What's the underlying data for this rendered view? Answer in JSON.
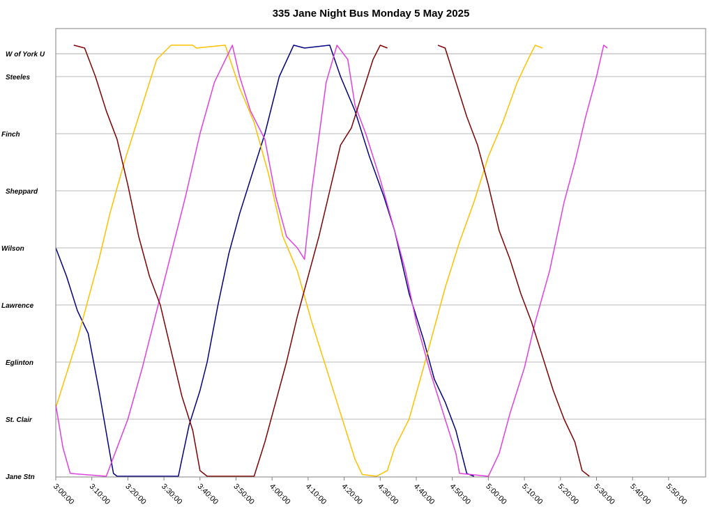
{
  "chart_data": {
    "type": "line",
    "title": "335 Jane Night Bus Monday 5 May 2025",
    "xlabel": "",
    "ylabel": "",
    "x_ticks": [
      "3:00:00",
      "3:10:00",
      "3:20:00",
      "3:30:00",
      "3:40:00",
      "3:50:00",
      "4:00:00",
      "4:10:00",
      "4:20:00",
      "4:30:00",
      "4:40:00",
      "4:50:00",
      "5:00:00",
      "5:10:00",
      "5:20:00",
      "5:30:00",
      "5:40:00",
      "5:50:00"
    ],
    "xlim_minutes_after_3am": [
      0,
      180
    ],
    "stops": [
      {
        "name": "Jane Stn",
        "pos": 0
      },
      {
        "name": "St. Clair",
        "pos": 1
      },
      {
        "name": "Eglinton",
        "pos": 2
      },
      {
        "name": "Lawrence",
        "pos": 3
      },
      {
        "name": "Wilson",
        "pos": 4
      },
      {
        "name": "Sheppard",
        "pos": 5
      },
      {
        "name": "Finch",
        "pos": 6
      },
      {
        "name": "Steeles",
        "pos": 7
      },
      {
        "name": "W of York U",
        "pos": 7.4
      }
    ],
    "ylim": [
      0,
      7.8
    ],
    "grid": true,
    "series": [
      {
        "color": "#000080",
        "points": [
          [
            0,
            4.0
          ],
          [
            3,
            3.5
          ],
          [
            6,
            2.9
          ],
          [
            9,
            2.5
          ],
          [
            12,
            1.5
          ],
          [
            15,
            0.4
          ],
          [
            16,
            0.05
          ],
          [
            17,
            0
          ],
          [
            34,
            0
          ],
          [
            35,
            0.3
          ],
          [
            37,
            0.9
          ],
          [
            40,
            1.5
          ],
          [
            42,
            2.0
          ],
          [
            45,
            3.0
          ],
          [
            48,
            3.9
          ],
          [
            51,
            4.6
          ],
          [
            54,
            5.2
          ],
          [
            58,
            6.0
          ],
          [
            62,
            7.0
          ],
          [
            66,
            7.55
          ],
          [
            69,
            7.5
          ],
          [
            76,
            7.55
          ],
          [
            79,
            7.0
          ],
          [
            83,
            6.4
          ],
          [
            87,
            5.6
          ],
          [
            91,
            4.9
          ],
          [
            94,
            4.3
          ],
          [
            98,
            3.2
          ],
          [
            102,
            2.4
          ],
          [
            105,
            1.7
          ],
          [
            108,
            1.3
          ],
          [
            111,
            0.8
          ],
          [
            113,
            0.3
          ],
          [
            114,
            0.05
          ],
          [
            116,
            0
          ]
        ]
      },
      {
        "color": "#FFC000",
        "points": [
          [
            0,
            1.2
          ],
          [
            3,
            1.8
          ],
          [
            6,
            2.4
          ],
          [
            9,
            3.1
          ],
          [
            12,
            3.8
          ],
          [
            15,
            4.6
          ],
          [
            19,
            5.5
          ],
          [
            24,
            6.5
          ],
          [
            28,
            7.3
          ],
          [
            32,
            7.55
          ],
          [
            38,
            7.55
          ],
          [
            39,
            7.5
          ],
          [
            47,
            7.55
          ],
          [
            51,
            6.8
          ],
          [
            55,
            6.2
          ],
          [
            59,
            5.3
          ],
          [
            63,
            4.2
          ],
          [
            67,
            3.6
          ],
          [
            71,
            2.7
          ],
          [
            75,
            1.9
          ],
          [
            79,
            1.1
          ],
          [
            83,
            0.3
          ],
          [
            85,
            0.03
          ],
          [
            89,
            0
          ],
          [
            92,
            0.1
          ],
          [
            94,
            0.5
          ],
          [
            98,
            1.0
          ],
          [
            102,
            1.9
          ],
          [
            105,
            2.6
          ],
          [
            108,
            3.3
          ],
          [
            112,
            4.1
          ],
          [
            116,
            4.8
          ],
          [
            120,
            5.6
          ],
          [
            124,
            6.2
          ],
          [
            128,
            6.9
          ],
          [
            131,
            7.3
          ],
          [
            133,
            7.55
          ],
          [
            135,
            7.5
          ]
        ]
      },
      {
        "color": "#E040E0",
        "points": [
          [
            0,
            1.25
          ],
          [
            2,
            0.5
          ],
          [
            4,
            0.05
          ],
          [
            14,
            0
          ],
          [
            17,
            0.5
          ],
          [
            20,
            1.0
          ],
          [
            24,
            1.9
          ],
          [
            28,
            2.9
          ],
          [
            32,
            3.9
          ],
          [
            36,
            4.9
          ],
          [
            40,
            6.0
          ],
          [
            44,
            6.9
          ],
          [
            49,
            7.55
          ],
          [
            51,
            7.0
          ],
          [
            54,
            6.4
          ],
          [
            58,
            5.9
          ],
          [
            61,
            4.9
          ],
          [
            64,
            4.2
          ],
          [
            67,
            4.0
          ],
          [
            69,
            3.8
          ],
          [
            71,
            5.0
          ],
          [
            75,
            6.9
          ],
          [
            78,
            7.55
          ],
          [
            81,
            7.3
          ],
          [
            83,
            6.5
          ],
          [
            86,
            6.0
          ],
          [
            90,
            5.2
          ],
          [
            94,
            4.3
          ],
          [
            97,
            3.6
          ],
          [
            100,
            2.7
          ],
          [
            104,
            1.8
          ],
          [
            108,
            1.0
          ],
          [
            111,
            0.4
          ],
          [
            112,
            0.05
          ],
          [
            120,
            0
          ],
          [
            123,
            0.4
          ],
          [
            126,
            1.1
          ],
          [
            130,
            1.9
          ],
          [
            133,
            2.7
          ],
          [
            137,
            3.6
          ],
          [
            141,
            4.8
          ],
          [
            144,
            5.5
          ],
          [
            147,
            6.3
          ],
          [
            150,
            7.0
          ],
          [
            152,
            7.55
          ],
          [
            153,
            7.5
          ]
        ]
      },
      {
        "color": "#800000",
        "points": [
          [
            5,
            7.55
          ],
          [
            8,
            7.5
          ],
          [
            11,
            7.0
          ],
          [
            14,
            6.4
          ],
          [
            17,
            5.9
          ],
          [
            20,
            5.1
          ],
          [
            23,
            4.2
          ],
          [
            26,
            3.5
          ],
          [
            29,
            3.0
          ],
          [
            32,
            2.2
          ],
          [
            35,
            1.4
          ],
          [
            38,
            0.8
          ],
          [
            40,
            0.1
          ],
          [
            42,
            0
          ],
          [
            55,
            0
          ],
          [
            58,
            0.6
          ],
          [
            61,
            1.3
          ],
          [
            64,
            2.0
          ],
          [
            67,
            2.8
          ],
          [
            70,
            3.5
          ],
          [
            73,
            4.2
          ],
          [
            76,
            5.0
          ],
          [
            79,
            5.8
          ],
          [
            82,
            6.1
          ],
          [
            85,
            6.7
          ],
          [
            88,
            7.3
          ],
          [
            90,
            7.55
          ],
          [
            92,
            7.5
          ]
        ]
      },
      {
        "color": "#800000",
        "points": [
          [
            106,
            7.55
          ],
          [
            108,
            7.5
          ],
          [
            111,
            6.9
          ],
          [
            114,
            6.3
          ],
          [
            117,
            5.8
          ],
          [
            120,
            5.1
          ],
          [
            123,
            4.3
          ],
          [
            126,
            3.8
          ],
          [
            129,
            3.2
          ],
          [
            132,
            2.7
          ],
          [
            135,
            2.1
          ],
          [
            138,
            1.5
          ],
          [
            141,
            1.0
          ],
          [
            144,
            0.6
          ],
          [
            146,
            0.1
          ],
          [
            148,
            0
          ]
        ]
      }
    ]
  }
}
